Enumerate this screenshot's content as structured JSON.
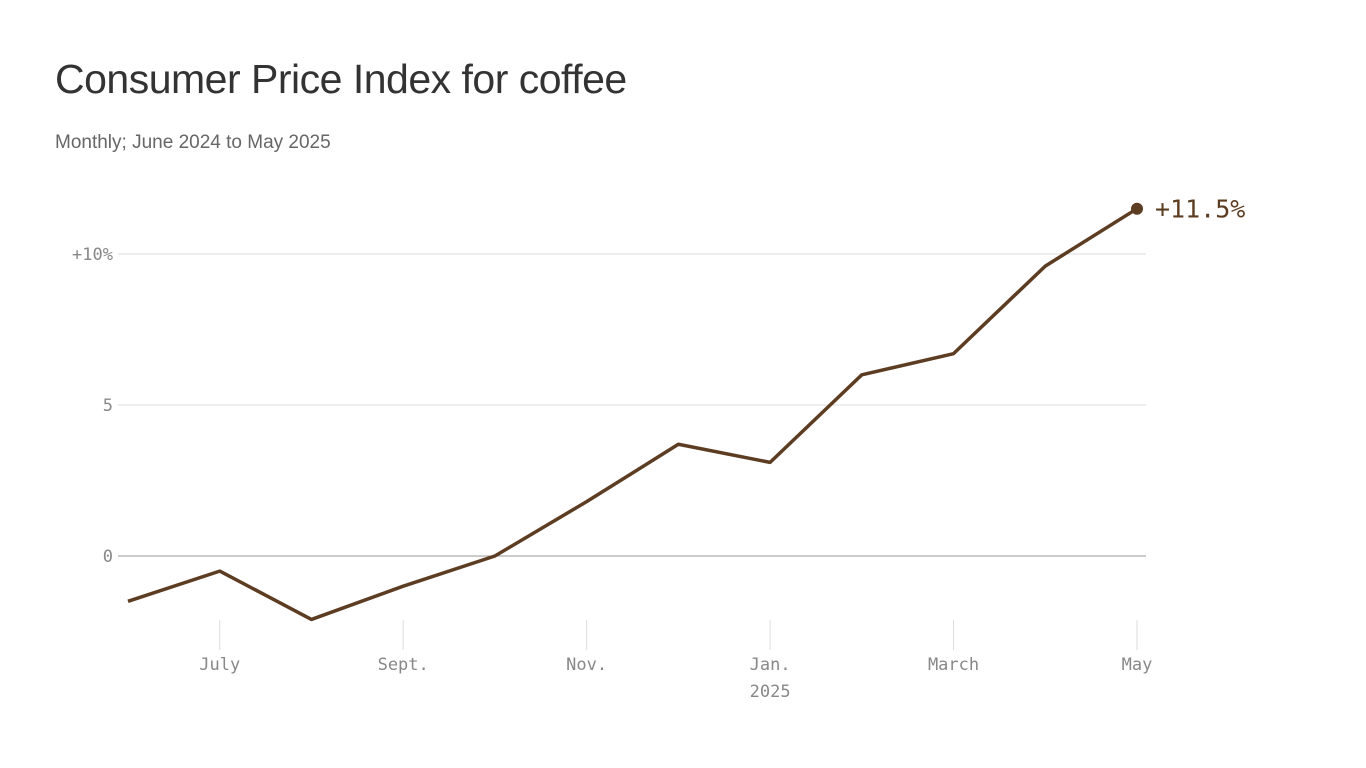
{
  "title": "Consumer Price Index for coffee",
  "subtitle": "Monthly; June 2024 to May 2025",
  "colors": {
    "line": "#5c3d22",
    "grid": "#dddddd",
    "zero": "#999999",
    "axis_text": "#888888"
  },
  "chart_data": {
    "type": "line",
    "title": "Consumer Price Index for coffee",
    "subtitle": "Monthly; June 2024 to May 2025",
    "x": [
      "2024-06",
      "2024-07",
      "2024-08",
      "2024-09",
      "2024-10",
      "2024-11",
      "2024-12",
      "2025-01",
      "2025-02",
      "2025-03",
      "2025-04",
      "2025-05"
    ],
    "values": [
      -1.5,
      -0.5,
      -2.1,
      -1.0,
      0.0,
      1.8,
      3.7,
      3.1,
      6.0,
      6.7,
      9.6,
      11.5
    ],
    "y_ticks": [
      {
        "value": 0,
        "label": "0"
      },
      {
        "value": 5,
        "label": "5"
      },
      {
        "value": 10,
        "label": "+10%"
      }
    ],
    "x_ticks": [
      {
        "index": 1,
        "label": "July"
      },
      {
        "index": 3,
        "label": "Sept."
      },
      {
        "index": 5,
        "label": "Nov."
      },
      {
        "index": 7,
        "label": "Jan.",
        "sublabel": "2025"
      },
      {
        "index": 9,
        "label": "March"
      },
      {
        "index": 11,
        "label": "May"
      }
    ],
    "end_label": "+11.5%",
    "ylim": [
      -3,
      12
    ],
    "grid": true,
    "legend": "none"
  }
}
